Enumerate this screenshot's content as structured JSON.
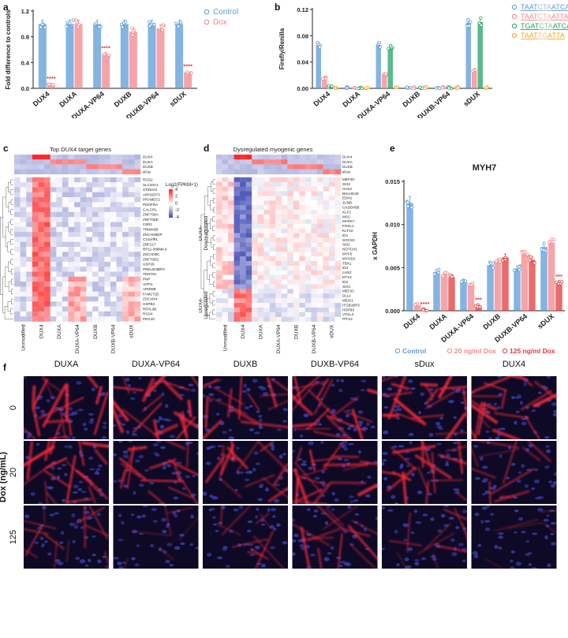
{
  "panel_a": {
    "label": "a",
    "ylabel": "Fold difference to controls",
    "legend": [
      {
        "name": "Control",
        "color": "#5b9bd5"
      },
      {
        "name": "Dox",
        "color": "#f4868b"
      }
    ]
  },
  "panel_b": {
    "label": "b",
    "ylabel": "Firefly/Renilla",
    "legend_seqs": [
      {
        "parts": [
          {
            "t": "TAAT",
            "c": "#5b9bd5"
          },
          {
            "t": "CTA",
            "c": "#9bbcd9"
          },
          {
            "t": "ATCA",
            "c": "#5b9bd5"
          }
        ],
        "marker": "#5b9bd5"
      },
      {
        "parts": [
          {
            "t": "TAAT",
            "c": "#f4868b"
          },
          {
            "t": "CTA",
            "c": "#f7b1b4"
          },
          {
            "t": "ATTA",
            "c": "#f4868b"
          }
        ],
        "marker": "#f4868b"
      },
      {
        "parts": [
          {
            "t": "TGAT",
            "c": "#1fa466"
          },
          {
            "t": "CTA",
            "c": "#7cc9a3"
          },
          {
            "t": "ATCA",
            "c": "#1fa466"
          }
        ],
        "marker": "#1fa466"
      },
      {
        "parts": [
          {
            "t": "TAAT",
            "c": "#f5a623"
          },
          {
            "t": "TG",
            "c": "#f7c67a"
          },
          {
            "t": "ATTA",
            "c": "#f5a623"
          }
        ],
        "marker": "#f5a623"
      }
    ]
  },
  "panel_c": {
    "label": "c",
    "title": "Top DUX4 target genes",
    "genes": [
      "RGS2",
      "SLC40A1",
      "ST8SIA4",
      "ARHGEF3",
      "PRAMEF2",
      "PDGFRA",
      "CALCRL",
      "ZNF705A",
      "ZNF705E",
      "C6R2",
      "TRIM43B",
      "ZSCAN5DP",
      "C21orf91",
      "ZNF217",
      "RP11-386M4.6",
      "ZSCAN5C",
      "ZNF705G",
      "USP29",
      "PRELID3BP4",
      "TENT5A",
      "PNP",
      "AVPI1",
      "ARID5B",
      "FAM171B",
      "ZSCAN4",
      "HSPB3",
      "RFPL4B",
      "RGS4",
      "PEG10"
    ],
    "top_rows": [
      "DUX4",
      "DUXA",
      "DUXB",
      "sDux"
    ],
    "xlabels": [
      "Unmodified",
      "DUX4",
      "DUXA",
      "DUXA-VP64",
      "DUXB",
      "DUXB-VP64",
      "sDUX"
    ],
    "scale_title": "Log2(FPKM+1)",
    "scale_ticks": [
      "4",
      "2",
      "0",
      "-2",
      "-4"
    ]
  },
  "panel_d": {
    "label": "d",
    "title": "Dysregulated myogenic genes",
    "genes": [
      "MEF2D",
      "SIX2",
      "HAS2",
      "BHLHE40",
      "EDN1",
      "JUNB",
      "GADD45B",
      "KLF2",
      "MSC",
      "MAPK7",
      "FOSL1",
      "KLF10",
      "ID1",
      "SOCS3",
      "SIX1",
      "NOTCH1",
      "MYF5",
      "MYOD1",
      "TBX1",
      "ID3",
      "LHX2",
      "DTX2",
      "ID2",
      "SIX4",
      "MEF2C",
      "DLL1",
      "MEIS1",
      "ITGB1BP2",
      "HSPB3",
      "VGLL2",
      "PITX2"
    ],
    "top_rows": [
      "DUX4",
      "DUXA",
      "DUXB",
      "sDux"
    ],
    "xlabels": [
      "Unmodified",
      "DUX4",
      "DUXA",
      "DUXA-VP64",
      "DUXB",
      "DUXB-VP64",
      "sDUX"
    ],
    "group_down": [
      "DUX4-",
      "Downregulated"
    ],
    "group_up": [
      "DUX4-",
      "Upregulated"
    ]
  },
  "panel_e": {
    "label": "e",
    "title": "MYH7",
    "ylabel": "x GAPDH",
    "legend": [
      {
        "name": "Control",
        "color": "#5b9bd5"
      },
      {
        "name": "20 ng/ml Dox",
        "color": "#f4868b"
      },
      {
        "name": "125 ng/ml Dox",
        "color": "#e23b3b"
      }
    ]
  },
  "panel_f": {
    "label": "f",
    "columns": [
      "DUXA",
      "DUXA-VP64",
      "DUXB",
      "DUXB-VP64",
      "sDux",
      "DUX4"
    ],
    "rows": [
      "0",
      "20",
      "125"
    ],
    "ylabel": "Dox (ng/mL)"
  },
  "chart_data": [
    {
      "type": "bar",
      "panel": "a",
      "categories": [
        "DUX4",
        "DUXA",
        "DUXA-VP64",
        "DUXB",
        "DUXB-VP64",
        "sDUX"
      ],
      "ylabel": "Fold difference to controls",
      "ylim": [
        0,
        1.2
      ],
      "yticks": [
        "0.0",
        "0.4",
        "0.8",
        "1.2"
      ],
      "series": [
        {
          "name": "Control",
          "values": [
            1.0,
            1.0,
            1.0,
            1.0,
            1.0,
            1.0
          ]
        },
        {
          "name": "Dox",
          "values": [
            0.06,
            1.0,
            0.53,
            0.88,
            0.93,
            0.25
          ]
        }
      ],
      "annotations": [
        {
          "category": "DUX4",
          "text": "****"
        },
        {
          "category": "DUXA-VP64",
          "text": "****"
        },
        {
          "category": "sDUX",
          "text": "****"
        }
      ]
    },
    {
      "type": "bar",
      "panel": "b",
      "categories": [
        "DUX4",
        "DUXA",
        "DUXA-VP64",
        "DUXB",
        "DUXB-VP64",
        "sDUX"
      ],
      "ylabel": "Firefly/Renilla",
      "ylim": [
        0,
        0.12
      ],
      "yticks": [
        "0.00",
        "0.04",
        "0.08",
        "0.12"
      ],
      "series": [
        {
          "name": "TAATCTAATCA",
          "values": [
            0.066,
            0.001,
            0.066,
            0.001,
            0.001,
            0.1
          ]
        },
        {
          "name": "TAATCTAATTA",
          "values": [
            0.016,
            0.001,
            0.021,
            0.001,
            0.001,
            0.027
          ]
        },
        {
          "name": "TGATCTAATCA",
          "values": [
            0.003,
            0.001,
            0.061,
            0.001,
            0.001,
            0.101
          ]
        },
        {
          "name": "TAATTGATTA",
          "values": [
            0.001,
            0.001,
            0.001,
            0.001,
            0.001,
            0.001
          ]
        }
      ]
    },
    {
      "type": "bar",
      "panel": "e",
      "title": "MYH7",
      "categories": [
        "DUX4",
        "DUXA",
        "DUXA-VP64",
        "DUXB",
        "DUXB-VP64",
        "sDUX"
      ],
      "ylabel": "x GAPDH",
      "ylim": [
        0,
        0.015
      ],
      "yticks": [
        "0.000",
        "0.005",
        "0.010",
        "0.015"
      ],
      "series": [
        {
          "name": "Control",
          "values": [
            0.0125,
            0.0045,
            0.0034,
            0.0053,
            0.0049,
            0.0074
          ]
        },
        {
          "name": "20 ng/ml Dox",
          "values": [
            0.0007,
            0.0042,
            0.003,
            0.0057,
            0.0066,
            0.0079
          ]
        },
        {
          "name": "125 ng/ml Dox",
          "values": [
            0.0001,
            0.0039,
            0.0006,
            0.0062,
            0.0059,
            0.0033
          ]
        }
      ],
      "annotations": [
        {
          "category": "DUX4",
          "text": "****"
        },
        {
          "category": "DUXA-VP64",
          "text": "***"
        },
        {
          "category": "sDUX",
          "text": "***"
        }
      ]
    }
  ]
}
